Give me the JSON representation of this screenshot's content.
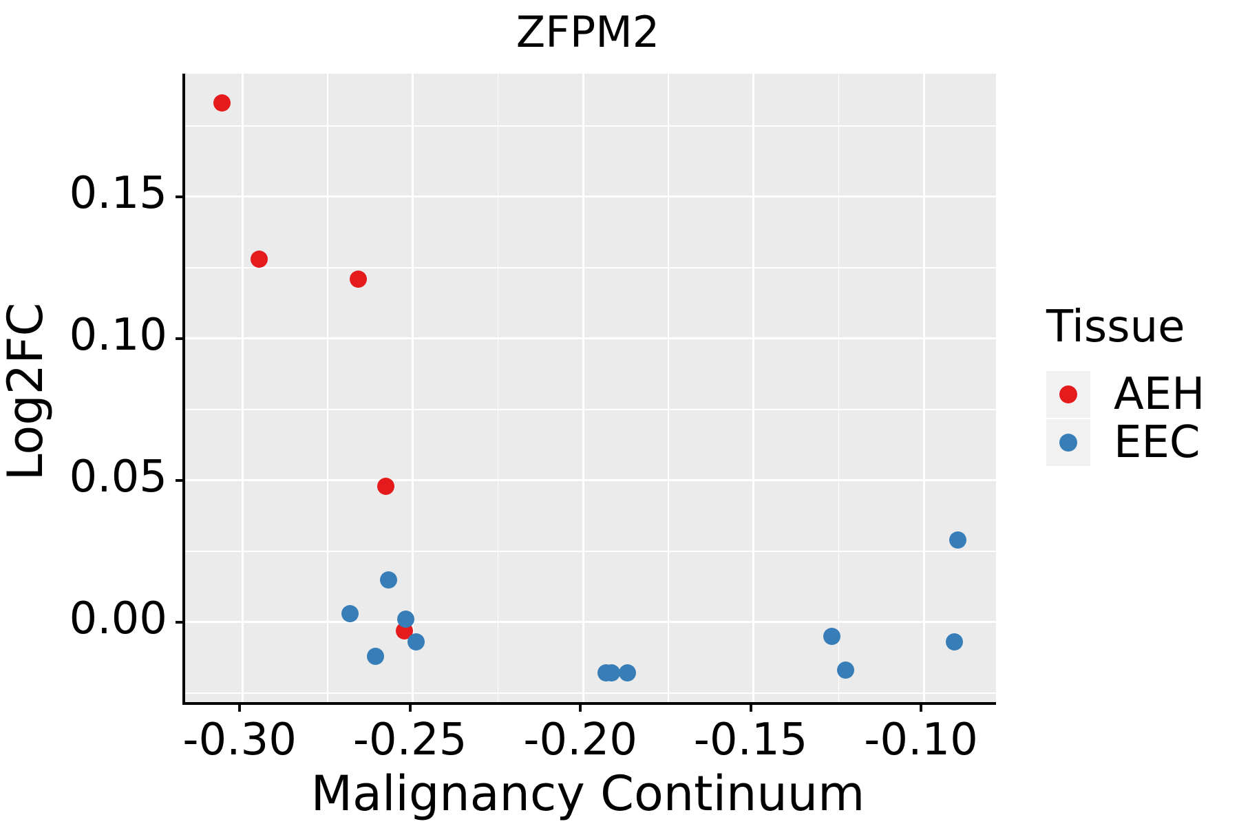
{
  "title": "ZFPM2",
  "chart_data": {
    "type": "scatter",
    "title": "ZFPM2",
    "xlabel": "Malignancy Continuum",
    "ylabel": "Log2FC",
    "xlim": [
      -0.3168,
      -0.0788
    ],
    "ylim": [
      -0.0282,
      0.1934
    ],
    "grid": true,
    "panel_background": "#ebebeb",
    "gridline_color": "#ffffff",
    "x_ticks": [
      {
        "value": -0.3,
        "label": "-0.30"
      },
      {
        "value": -0.25,
        "label": "-0.25"
      },
      {
        "value": -0.2,
        "label": "-0.20"
      },
      {
        "value": -0.15,
        "label": "-0.15"
      },
      {
        "value": -0.1,
        "label": "-0.10"
      }
    ],
    "y_ticks": [
      {
        "value": 0.0,
        "label": "0.00"
      },
      {
        "value": 0.05,
        "label": "0.05"
      },
      {
        "value": 0.1,
        "label": "0.10"
      },
      {
        "value": 0.15,
        "label": "0.15"
      }
    ],
    "x_minor_ticks": [
      -0.275,
      -0.225,
      -0.175,
      -0.125
    ],
    "y_minor_ticks": [
      -0.025,
      0.025,
      0.075,
      0.125,
      0.175
    ],
    "legend": {
      "title": "Tissue",
      "position": "right",
      "entries": [
        {
          "label": "AEH",
          "color": "#e41a1c"
        },
        {
          "label": "EEC",
          "color": "#377eb8"
        }
      ]
    },
    "series": [
      {
        "name": "AEH",
        "color": "#e41a1c",
        "points": [
          [
            -0.306,
            0.183
          ],
          [
            -0.295,
            0.128
          ],
          [
            -0.266,
            0.121
          ],
          [
            -0.258,
            0.048
          ],
          [
            -0.2525,
            -0.003
          ]
        ]
      },
      {
        "name": "EEC",
        "color": "#377eb8",
        "points": [
          [
            -0.2685,
            0.003
          ],
          [
            -0.261,
            -0.012
          ],
          [
            -0.257,
            0.015
          ],
          [
            -0.252,
            0.001
          ],
          [
            -0.249,
            -0.007
          ],
          [
            -0.1933,
            -0.018
          ],
          [
            -0.1917,
            -0.018
          ],
          [
            -0.187,
            -0.018
          ],
          [
            -0.127,
            -0.005
          ],
          [
            -0.123,
            -0.017
          ],
          [
            -0.091,
            -0.007
          ],
          [
            -0.09,
            0.029
          ]
        ]
      }
    ]
  }
}
